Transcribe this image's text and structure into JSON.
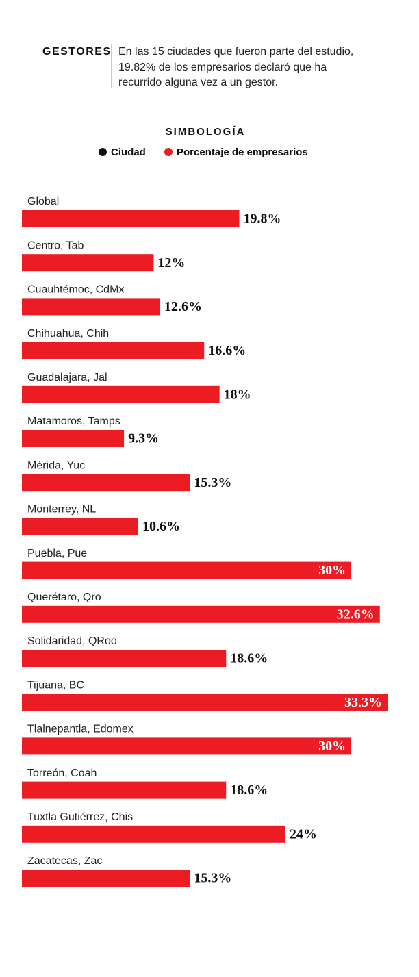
{
  "chart_data": {
    "type": "hbar",
    "header": {
      "label": "GESTORES",
      "lines": [
        "En las 15 ciudades que fueron parte del estudio,",
        "19.82% de los empresarios declaró que ha",
        "recurrido alguna vez a un gestor."
      ]
    },
    "legend_title": "SIMBOLOGÍA",
    "category_label": "Ciudad",
    "category_color": "#111111",
    "categories": [
      "Global",
      "Centro, Tab",
      "Cuauhtémoc, CdMx",
      "Chihuahua, Chih",
      "Guadalajara, Jal",
      "Matamoros, Tamps",
      "Mérida, Yuc",
      "Monterrey, NL",
      "Puebla, Pue",
      "Querétaro, Qro",
      "Solidaridad, QRoo",
      "Tijuana, BC",
      "Tlalnepantla, Edomex",
      "Torreón, Coah",
      "Tuxtla Gutiérrez, Chis",
      "Zacatecas, Zac"
    ],
    "series": [
      {
        "name": "Porcentaje de empresarios",
        "color": "#ec1c24",
        "values": [
          19.8,
          12,
          12.6,
          16.6,
          18,
          9.3,
          15.3,
          10.6,
          30,
          32.6,
          18.6,
          33.3,
          30,
          18.6,
          24,
          15.3
        ],
        "value_labels": [
          "19.8%",
          "12%",
          "12.6%",
          "16.6%",
          "18%",
          "9.3%",
          "15.3%",
          "10.6%",
          "30%",
          "32.6%",
          "18.6%",
          "33.3%",
          "30%",
          "18.6%",
          "24%",
          "15.3%"
        ]
      }
    ]
  }
}
